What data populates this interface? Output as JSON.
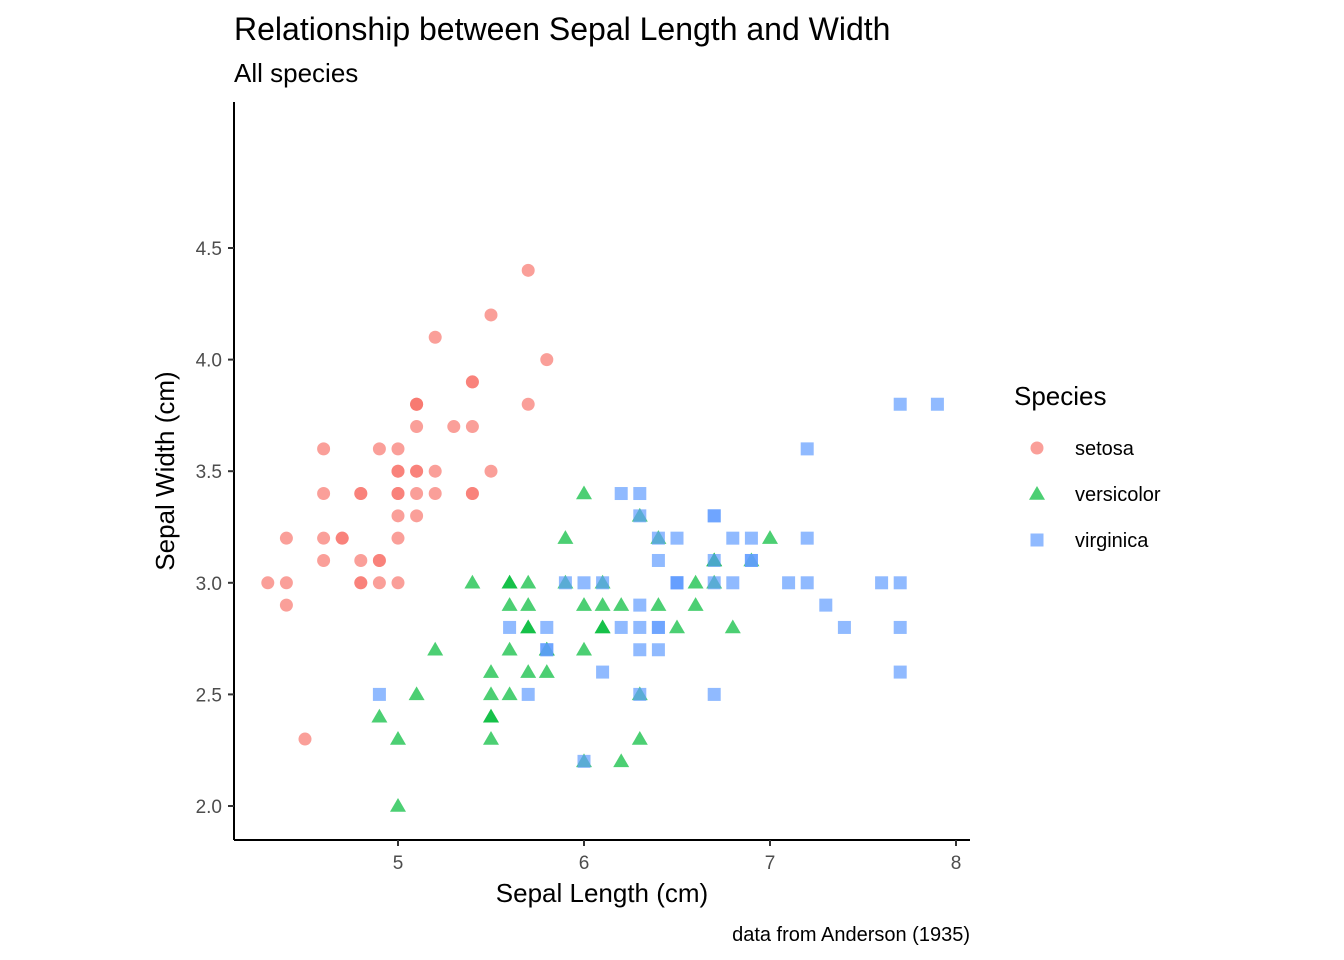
{
  "chart_data": {
    "type": "scatter",
    "title": "Relationship between Sepal Length and Width",
    "subtitle": "All species",
    "xlabel": "Sepal Length (cm)",
    "ylabel": "Sepal Width (cm)",
    "caption": "data from Anderson (1935)",
    "xlim": [
      4.2,
      8.1
    ],
    "ylim": [
      1.9,
      4.5
    ],
    "x_ticks": [
      5,
      6,
      7,
      8
    ],
    "y_ticks": [
      2.0,
      2.5,
      3.0,
      3.5,
      4.0,
      4.5
    ],
    "x_tick_labels": [
      "5",
      "6",
      "7",
      "8"
    ],
    "y_tick_labels": [
      "2.0",
      "2.5",
      "3.0",
      "3.5",
      "4.0",
      "4.5"
    ],
    "grid": false,
    "legend": {
      "title": "Species",
      "placement": "right"
    },
    "series": [
      {
        "name": "setosa",
        "shape": "circle",
        "color": "#F8766D",
        "points": [
          [
            5.1,
            3.5
          ],
          [
            4.9,
            3.0
          ],
          [
            4.7,
            3.2
          ],
          [
            4.6,
            3.1
          ],
          [
            5.0,
            3.6
          ],
          [
            5.4,
            3.9
          ],
          [
            4.6,
            3.4
          ],
          [
            5.0,
            3.4
          ],
          [
            4.4,
            2.9
          ],
          [
            4.9,
            3.1
          ],
          [
            5.4,
            3.7
          ],
          [
            4.8,
            3.4
          ],
          [
            4.8,
            3.0
          ],
          [
            4.3,
            3.0
          ],
          [
            5.8,
            4.0
          ],
          [
            5.7,
            4.4
          ],
          [
            5.4,
            3.9
          ],
          [
            5.1,
            3.5
          ],
          [
            5.7,
            3.8
          ],
          [
            5.1,
            3.8
          ],
          [
            5.4,
            3.4
          ],
          [
            5.1,
            3.7
          ],
          [
            4.6,
            3.6
          ],
          [
            5.1,
            3.3
          ],
          [
            4.8,
            3.4
          ],
          [
            5.0,
            3.0
          ],
          [
            5.0,
            3.4
          ],
          [
            5.2,
            3.5
          ],
          [
            5.2,
            3.4
          ],
          [
            4.7,
            3.2
          ],
          [
            4.8,
            3.1
          ],
          [
            5.4,
            3.4
          ],
          [
            5.2,
            4.1
          ],
          [
            5.5,
            4.2
          ],
          [
            4.9,
            3.1
          ],
          [
            5.0,
            3.2
          ],
          [
            5.5,
            3.5
          ],
          [
            4.9,
            3.6
          ],
          [
            4.4,
            3.0
          ],
          [
            5.1,
            3.4
          ],
          [
            5.0,
            3.5
          ],
          [
            4.5,
            2.3
          ],
          [
            4.4,
            3.2
          ],
          [
            5.0,
            3.5
          ],
          [
            5.1,
            3.8
          ],
          [
            4.8,
            3.0
          ],
          [
            5.1,
            3.8
          ],
          [
            4.6,
            3.2
          ],
          [
            5.3,
            3.7
          ],
          [
            5.0,
            3.3
          ]
        ]
      },
      {
        "name": "versicolor",
        "shape": "triangle",
        "color": "#00BA38",
        "points": [
          [
            7.0,
            3.2
          ],
          [
            6.4,
            3.2
          ],
          [
            6.9,
            3.1
          ],
          [
            5.5,
            2.3
          ],
          [
            6.5,
            2.8
          ],
          [
            5.7,
            2.8
          ],
          [
            6.3,
            3.3
          ],
          [
            4.9,
            2.4
          ],
          [
            6.6,
            2.9
          ],
          [
            5.2,
            2.7
          ],
          [
            5.0,
            2.0
          ],
          [
            5.9,
            3.0
          ],
          [
            6.0,
            2.2
          ],
          [
            6.1,
            2.9
          ],
          [
            5.6,
            2.9
          ],
          [
            6.7,
            3.1
          ],
          [
            5.6,
            3.0
          ],
          [
            5.8,
            2.7
          ],
          [
            6.2,
            2.2
          ],
          [
            5.6,
            2.5
          ],
          [
            5.9,
            3.2
          ],
          [
            6.1,
            2.8
          ],
          [
            6.3,
            2.5
          ],
          [
            6.1,
            2.8
          ],
          [
            6.4,
            2.9
          ],
          [
            6.6,
            3.0
          ],
          [
            6.8,
            2.8
          ],
          [
            6.7,
            3.0
          ],
          [
            6.0,
            2.9
          ],
          [
            5.7,
            2.6
          ],
          [
            5.5,
            2.4
          ],
          [
            5.5,
            2.4
          ],
          [
            5.8,
            2.7
          ],
          [
            6.0,
            2.7
          ],
          [
            5.4,
            3.0
          ],
          [
            6.0,
            3.4
          ],
          [
            6.7,
            3.1
          ],
          [
            6.3,
            2.3
          ],
          [
            5.6,
            3.0
          ],
          [
            5.5,
            2.5
          ],
          [
            5.5,
            2.6
          ],
          [
            6.1,
            3.0
          ],
          [
            5.8,
            2.6
          ],
          [
            5.0,
            2.3
          ],
          [
            5.6,
            2.7
          ],
          [
            5.7,
            3.0
          ],
          [
            5.7,
            2.9
          ],
          [
            6.2,
            2.9
          ],
          [
            5.1,
            2.5
          ],
          [
            5.7,
            2.8
          ]
        ]
      },
      {
        "name": "virginica",
        "shape": "square",
        "color": "#619CFF",
        "points": [
          [
            6.3,
            3.3
          ],
          [
            5.8,
            2.7
          ],
          [
            7.1,
            3.0
          ],
          [
            6.3,
            2.9
          ],
          [
            6.5,
            3.0
          ],
          [
            7.6,
            3.0
          ],
          [
            4.9,
            2.5
          ],
          [
            7.3,
            2.9
          ],
          [
            6.7,
            2.5
          ],
          [
            7.2,
            3.6
          ],
          [
            6.5,
            3.2
          ],
          [
            6.4,
            2.7
          ],
          [
            6.8,
            3.0
          ],
          [
            5.7,
            2.5
          ],
          [
            5.8,
            2.8
          ],
          [
            6.4,
            3.2
          ],
          [
            6.5,
            3.0
          ],
          [
            7.7,
            3.8
          ],
          [
            7.7,
            2.6
          ],
          [
            6.0,
            2.2
          ],
          [
            6.9,
            3.2
          ],
          [
            5.6,
            2.8
          ],
          [
            7.7,
            2.8
          ],
          [
            6.3,
            2.7
          ],
          [
            6.7,
            3.3
          ],
          [
            7.2,
            3.2
          ],
          [
            6.2,
            2.8
          ],
          [
            6.1,
            3.0
          ],
          [
            6.4,
            2.8
          ],
          [
            7.2,
            3.0
          ],
          [
            7.4,
            2.8
          ],
          [
            7.9,
            3.8
          ],
          [
            6.4,
            2.8
          ],
          [
            6.3,
            2.8
          ],
          [
            6.1,
            2.6
          ],
          [
            7.7,
            3.0
          ],
          [
            6.3,
            3.4
          ],
          [
            6.4,
            3.1
          ],
          [
            6.0,
            3.0
          ],
          [
            6.9,
            3.1
          ],
          [
            6.7,
            3.1
          ],
          [
            6.9,
            3.1
          ],
          [
            5.8,
            2.7
          ],
          [
            6.8,
            3.2
          ],
          [
            6.7,
            3.3
          ],
          [
            6.7,
            3.0
          ],
          [
            6.3,
            2.5
          ],
          [
            6.5,
            3.0
          ],
          [
            6.2,
            3.4
          ],
          [
            5.9,
            3.0
          ]
        ]
      }
    ]
  }
}
